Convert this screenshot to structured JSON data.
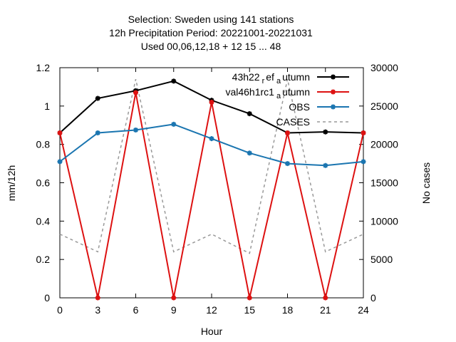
{
  "chart_data": {
    "type": "line",
    "title_lines": [
      "Selection: Sweden using   141 stations",
      "12h Precipitation   Period: 20221001-20221031",
      "Used  00,06,12,18  + 12 15 ... 48"
    ],
    "xlabel": "Hour",
    "ylabel": "mm/12h",
    "y2label": "No cases",
    "x": [
      0,
      3,
      6,
      9,
      12,
      15,
      18,
      21,
      24
    ],
    "xlim": [
      0,
      24
    ],
    "ylim": [
      0,
      1.2
    ],
    "y2lim": [
      0,
      30000
    ],
    "xticks": [
      "0",
      "3",
      "6",
      "9",
      "12",
      "15",
      "18",
      "21",
      "24"
    ],
    "yticks": [
      "0",
      "0.2",
      "0.4",
      "0.6",
      "0.8",
      "1",
      "1.2"
    ],
    "y2ticks": [
      "0",
      "5000",
      "10000",
      "15000",
      "20000",
      "25000",
      "30000"
    ],
    "grid": false,
    "legend_position": "top-right",
    "series": [
      {
        "name": "43h22_ref_autumn",
        "legend_main": [
          "43h22",
          "ef",
          "utumn"
        ],
        "legend_sub": [
          "r",
          "a"
        ],
        "axis": "y",
        "color": "#000000",
        "marker": "cross",
        "values": [
          0.86,
          1.04,
          1.08,
          1.13,
          1.03,
          0.96,
          0.86,
          0.865,
          0.86
        ]
      },
      {
        "name": "val46h1rc1_autumn",
        "legend_main": [
          "val46h1rc1",
          "utumn"
        ],
        "legend_sub": [
          "a"
        ],
        "axis": "y",
        "color": "#dd1111",
        "marker": "cross",
        "values": [
          0.86,
          0.0,
          1.07,
          0.0,
          1.02,
          0.0,
          0.86,
          0.0,
          0.86
        ]
      },
      {
        "name": "OBS",
        "legend_main": [
          "OBS"
        ],
        "legend_sub": [],
        "axis": "y",
        "color": "#1a75b0",
        "marker": "cross",
        "values": [
          0.71,
          0.86,
          0.875,
          0.905,
          0.83,
          0.755,
          0.7,
          0.69,
          0.71
        ]
      },
      {
        "name": "CASES",
        "legend_main": [
          "CASES"
        ],
        "legend_sub": [],
        "axis": "y2",
        "color": "#999999",
        "dashed": true,
        "values": [
          8300,
          6000,
          28500,
          6000,
          8300,
          5800,
          28500,
          6000,
          8300
        ]
      }
    ]
  }
}
